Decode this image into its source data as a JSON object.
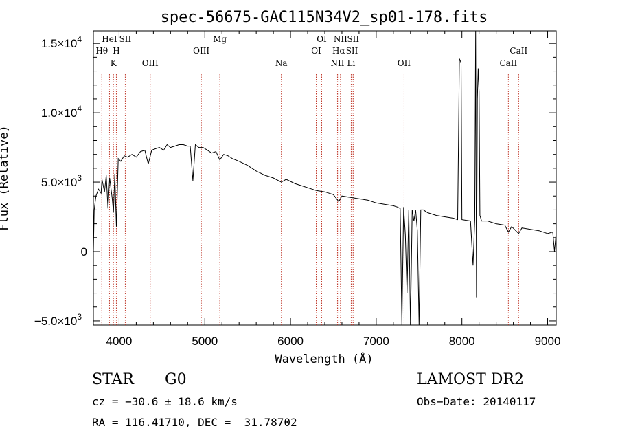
{
  "chart_data": {
    "type": "line",
    "title": "spec-56675-GAC115N34V2_sp01-178.fits",
    "xlabel": "Wavelength (Å)",
    "ylabel": "Flux (Relative)",
    "xlim": [
      3700,
      9100
    ],
    "ylim": [
      -5300,
      15900
    ],
    "x_ticks": [
      {
        "value": 4000,
        "label": "4000"
      },
      {
        "value": 5000,
        "label": "5000"
      },
      {
        "value": 6000,
        "label": "6000"
      },
      {
        "value": 7000,
        "label": "7000"
      },
      {
        "value": 8000,
        "label": "8000"
      },
      {
        "value": 9000,
        "label": "9000"
      }
    ],
    "y_ticks": [
      {
        "value": -5000,
        "mant": "−5.0×10",
        "exp": "3"
      },
      {
        "value": 0,
        "mant": "0",
        "exp": ""
      },
      {
        "value": 5000,
        "mant": "5.0×10",
        "exp": "3"
      },
      {
        "value": 10000,
        "mant": "1.0×10",
        "exp": "4"
      },
      {
        "value": 15000,
        "mant": "1.5×10",
        "exp": "4"
      }
    ],
    "series": [
      {
        "x": [
          3700,
          3710,
          3730,
          3760,
          3790,
          3800,
          3830,
          3850,
          3870,
          3890,
          3920,
          3934,
          3950,
          3968,
          3990,
          4020,
          4060,
          4100,
          4150,
          4200,
          4250,
          4300,
          4340,
          4380,
          4420,
          4470,
          4520,
          4560,
          4600,
          4650,
          4700,
          4750,
          4800,
          4830,
          4861,
          4890,
          4930,
          4980,
          5030,
          5080,
          5130,
          5175,
          5220,
          5270,
          5320,
          5400,
          5500,
          5600,
          5700,
          5800,
          5893,
          5950,
          6050,
          6150,
          6250,
          6300,
          6400,
          6500,
          6563,
          6600,
          6700,
          6800,
          6900,
          7000,
          7100,
          7200,
          7250,
          7280,
          7300,
          7320,
          7340,
          7360,
          7380,
          7400,
          7420,
          7440,
          7460,
          7480,
          7500,
          7520,
          7550,
          7600,
          7700,
          7800,
          7900,
          7950,
          7970,
          7990,
          8000,
          8100,
          8130,
          8150,
          8160,
          8170,
          8180,
          8190,
          8200,
          8210,
          8230,
          8300,
          8400,
          8500,
          8542,
          8580,
          8662,
          8700,
          8800,
          8900,
          9000,
          9060,
          9080,
          9100
        ],
        "y": [
          0,
          3000,
          4000,
          4500,
          4200,
          5200,
          4300,
          5500,
          3100,
          5300,
          3800,
          2800,
          5600,
          1800,
          6700,
          6500,
          6900,
          6800,
          7000,
          6800,
          7200,
          7300,
          6300,
          7300,
          7400,
          7500,
          7300,
          7700,
          7500,
          7600,
          7700,
          7700,
          7600,
          7600,
          5100,
          7700,
          7500,
          7500,
          7300,
          7100,
          7200,
          6600,
          7000,
          6900,
          6700,
          6500,
          6200,
          5800,
          5500,
          5300,
          5000,
          5200,
          4900,
          4700,
          4500,
          4400,
          4300,
          4100,
          3600,
          4000,
          3900,
          3800,
          3700,
          3500,
          3400,
          3300,
          3200,
          3100,
          -5300,
          3200,
          1200,
          -3000,
          3000,
          -5300,
          3000,
          2200,
          3000,
          1500,
          -5300,
          3000,
          3000,
          2800,
          2600,
          2500,
          2400,
          2300,
          13900,
          13600,
          2300,
          2200,
          -1000,
          2300,
          16000,
          -3300,
          11000,
          13200,
          11500,
          2600,
          2200,
          2200,
          2000,
          1900,
          1400,
          1800,
          1300,
          1700,
          1600,
          1500,
          1300,
          1400,
          0,
          1400
        ]
      }
    ],
    "emission_lines": [
      {
        "wavelength": 3798,
        "label": "Hθ",
        "row": 2
      },
      {
        "wavelength": 3888,
        "label": "HeI",
        "row": 1
      },
      {
        "wavelength": 3934,
        "label": "K",
        "row": 3
      },
      {
        "wavelength": 3968,
        "label": "H",
        "row": 2
      },
      {
        "wavelength": 4072,
        "label": "SII",
        "row": 1
      },
      {
        "wavelength": 4363,
        "label": "OIII",
        "row": 3
      },
      {
        "wavelength": 4959,
        "label": "OIII",
        "row": 2
      },
      {
        "wavelength": 5175,
        "label": "Mg",
        "row": 1
      },
      {
        "wavelength": 5893,
        "label": "Na",
        "row": 3
      },
      {
        "wavelength": 6300,
        "label": "OI",
        "row": 2
      },
      {
        "wavelength": 6364,
        "label": "OI",
        "row": 1
      },
      {
        "wavelength": 6548,
        "label": "NII",
        "row": 3
      },
      {
        "wavelength": 6563,
        "label": "Hα",
        "row": 2
      },
      {
        "wavelength": 6583,
        "label": "NII",
        "row": 1
      },
      {
        "wavelength": 6708,
        "label": "Li",
        "row": 3
      },
      {
        "wavelength": 6717,
        "label": "SII",
        "row": 2
      },
      {
        "wavelength": 6731,
        "label": "SII",
        "row": 1
      },
      {
        "wavelength": 7325,
        "label": "OII",
        "row": 3
      },
      {
        "wavelength": 8542,
        "label": "CaII",
        "row": 3
      },
      {
        "wavelength": 8662,
        "label": "CaII",
        "row": 2
      }
    ]
  },
  "info": {
    "class_label": "STAR",
    "subclass": "G0",
    "survey": "LAMOST DR2",
    "cz": "cz = −30.6 ± 18.6 km/s",
    "obs_date": "Obs−Date: 20140117",
    "coords": "RA = 116.41710, DEC =  31.78702"
  }
}
